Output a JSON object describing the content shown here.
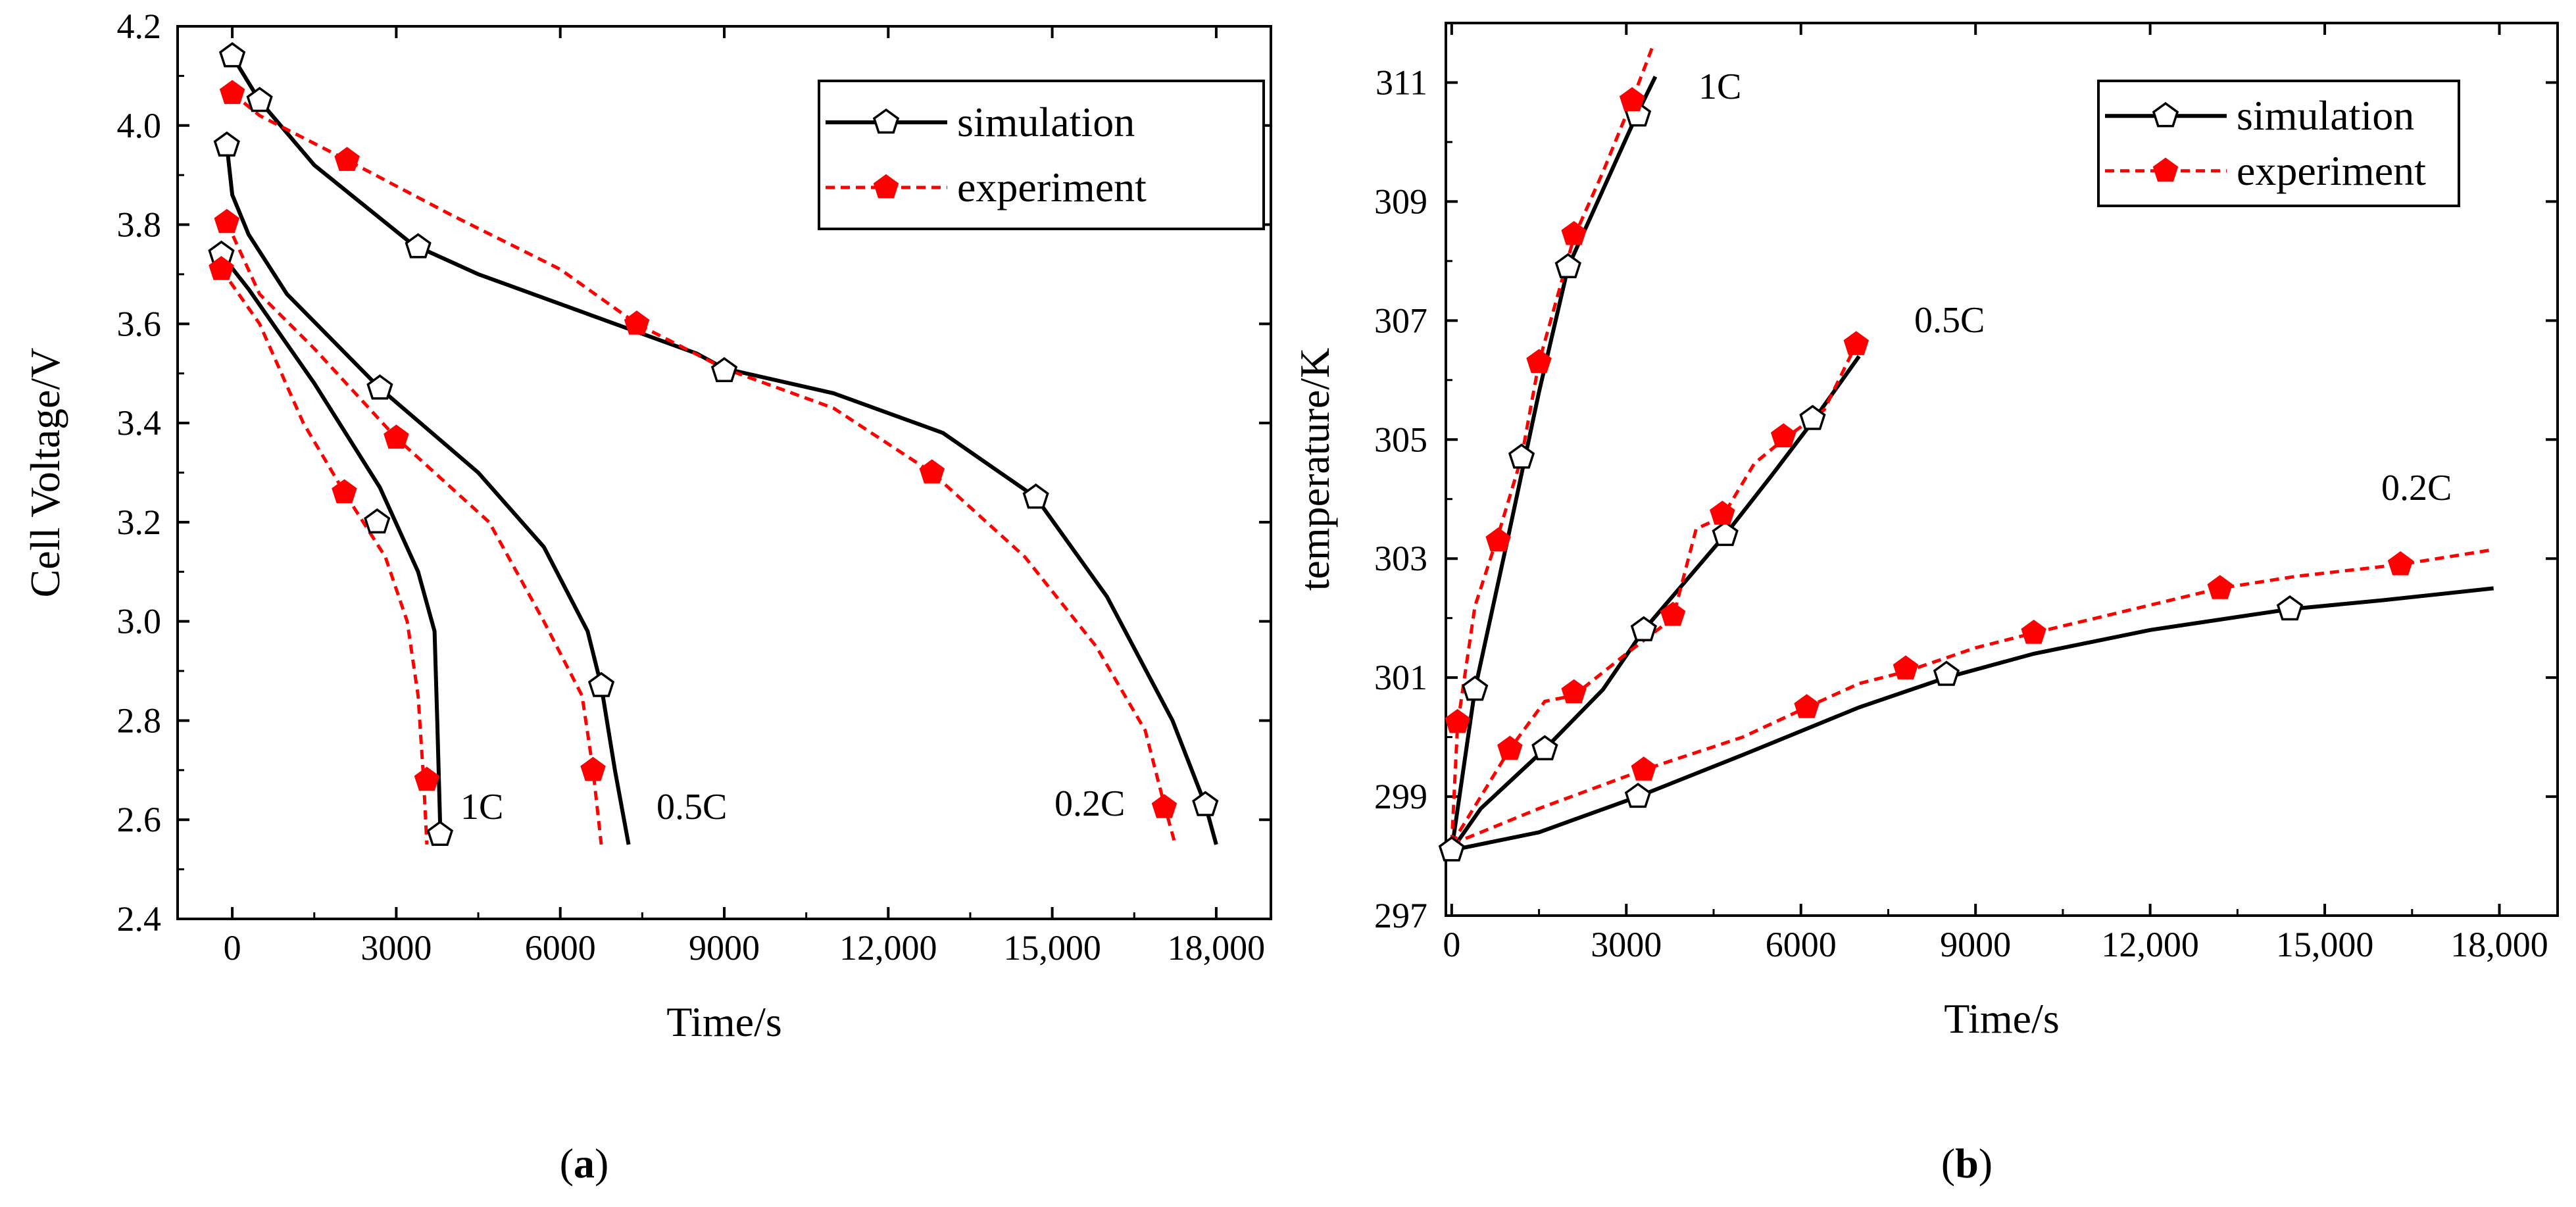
{
  "colors": {
    "simulation": "#000000",
    "experiment": "#ff0000"
  },
  "chart_data": [
    {
      "type": "line",
      "panel": "a",
      "caption": {
        "open": "(",
        "letter": "a",
        "close": ")"
      },
      "xlabel": "Time/s",
      "ylabel": "Cell Voltage/V",
      "xlim": [
        -1000,
        19000
      ],
      "ylim": [
        2.4,
        4.2
      ],
      "xticks": [
        0,
        3000,
        6000,
        9000,
        12000,
        15000,
        18000
      ],
      "xtick_labels": [
        "0",
        "3000",
        "6000",
        "9000",
        "12,000",
        "15,000",
        "18,000"
      ],
      "yticks": [
        2.4,
        2.6,
        2.8,
        3.0,
        3.2,
        3.4,
        3.6,
        3.8,
        4.0,
        4.2
      ],
      "ytick_labels": [
        "2.4",
        "2.6",
        "2.8",
        "3.0",
        "3.2",
        "3.4",
        "3.6",
        "3.8",
        "4.0",
        "4.2"
      ],
      "legend": {
        "position": "top-right",
        "entries": [
          "simulation",
          "experiment"
        ]
      },
      "annotations": [
        {
          "text": "1C",
          "x": 4200,
          "y": 2.6
        },
        {
          "text": "0.5C",
          "x": 7700,
          "y": 2.6
        },
        {
          "text": "0.2C",
          "x": 15100,
          "y": 2.61
        }
      ],
      "series": [
        {
          "name": "simulation",
          "label": "1C",
          "points": [
            [
              -200,
              3.74
            ],
            [
              300,
              3.67
            ],
            [
              1500,
              3.48
            ],
            [
              2700,
              3.27
            ],
            [
              3400,
              3.1
            ],
            [
              3700,
              2.98
            ],
            [
              3750,
              2.8
            ],
            [
              3800,
              2.6
            ],
            [
              3810,
              2.55
            ]
          ],
          "markers": [
            [
              -200,
              3.74
            ],
            [
              2650,
              3.2
            ],
            [
              3800,
              2.57
            ]
          ]
        },
        {
          "name": "simulation",
          "label": "0.5C",
          "points": [
            [
              -100,
              3.96
            ],
            [
              0,
              3.86
            ],
            [
              300,
              3.78
            ],
            [
              1000,
              3.66
            ],
            [
              2700,
              3.47
            ],
            [
              4500,
              3.3
            ],
            [
              5700,
              3.15
            ],
            [
              6500,
              2.98
            ],
            [
              6750,
              2.87
            ],
            [
              7000,
              2.7
            ],
            [
              7250,
              2.55
            ]
          ],
          "markers": [
            [
              -100,
              3.96
            ],
            [
              2700,
              3.47
            ],
            [
              6750,
              2.87
            ]
          ]
        },
        {
          "name": "simulation",
          "label": "0.2C",
          "points": [
            [
              0,
              4.14
            ],
            [
              500,
              4.05
            ],
            [
              1500,
              3.92
            ],
            [
              3300,
              3.76
            ],
            [
              4500,
              3.7
            ],
            [
              6500,
              3.62
            ],
            [
              8500,
              3.54
            ],
            [
              9000,
              3.51
            ],
            [
              11000,
              3.46
            ],
            [
              13000,
              3.38
            ],
            [
              14700,
              3.25
            ],
            [
              16000,
              3.05
            ],
            [
              17200,
              2.8
            ],
            [
              17800,
              2.63
            ],
            [
              18000,
              2.55
            ]
          ],
          "markers": [
            [
              0,
              4.14
            ],
            [
              500,
              4.05
            ],
            [
              3400,
              3.755
            ],
            [
              9000,
              3.505
            ],
            [
              14700,
              3.25
            ],
            [
              17800,
              2.63
            ]
          ]
        },
        {
          "name": "experiment",
          "label": "1C",
          "points": [
            [
              -200,
              3.71
            ],
            [
              500,
              3.6
            ],
            [
              1300,
              3.4
            ],
            [
              2050,
              3.26
            ],
            [
              2800,
              3.13
            ],
            [
              3200,
              3.0
            ],
            [
              3400,
              2.85
            ],
            [
              3500,
              2.68
            ],
            [
              3560,
              2.55
            ]
          ],
          "markers": [
            [
              -200,
              3.71
            ],
            [
              2050,
              3.26
            ],
            [
              3560,
              2.68
            ]
          ]
        },
        {
          "name": "experiment",
          "label": "0.5C",
          "points": [
            [
              -100,
              3.805
            ],
            [
              500,
              3.66
            ],
            [
              1500,
              3.55
            ],
            [
              3000,
              3.37
            ],
            [
              4700,
              3.2
            ],
            [
              5700,
              3.0
            ],
            [
              6400,
              2.85
            ],
            [
              6600,
              2.7
            ],
            [
              6750,
              2.55
            ]
          ],
          "markers": [
            [
              -100,
              3.805
            ],
            [
              3000,
              3.37
            ],
            [
              6600,
              2.7
            ]
          ]
        },
        {
          "name": "experiment",
          "label": "0.2C",
          "points": [
            [
              0,
              4.065
            ],
            [
              500,
              4.02
            ],
            [
              2100,
              3.93
            ],
            [
              4000,
              3.82
            ],
            [
              6000,
              3.71
            ],
            [
              7400,
              3.6
            ],
            [
              9000,
              3.51
            ],
            [
              11000,
              3.43
            ],
            [
              12800,
              3.3
            ],
            [
              14500,
              3.13
            ],
            [
              15800,
              2.95
            ],
            [
              16700,
              2.78
            ],
            [
              17050,
              2.63
            ],
            [
              17250,
              2.55
            ]
          ],
          "markers": [
            [
              0,
              4.065
            ],
            [
              2100,
              3.93
            ],
            [
              7400,
              3.6
            ],
            [
              12800,
              3.3
            ],
            [
              17050,
              2.625
            ]
          ]
        }
      ]
    },
    {
      "type": "line",
      "panel": "b",
      "caption": {
        "open": "(",
        "letter": "b",
        "close": ")"
      },
      "xlabel": "Time/s",
      "ylabel": "temperature/K",
      "xlim": [
        -100,
        19000
      ],
      "ylim": [
        297,
        312
      ],
      "xticks": [
        0,
        3000,
        6000,
        9000,
        12000,
        15000,
        18000
      ],
      "xtick_labels": [
        "0",
        "3000",
        "6000",
        "9000",
        "12,000",
        "15,000",
        "18,000"
      ],
      "yticks": [
        297,
        299,
        301,
        303,
        305,
        307,
        309,
        311
      ],
      "ytick_labels": [
        "297",
        "299",
        "301",
        "303",
        "305",
        "307",
        "309",
        "311"
      ],
      "legend": {
        "position": "top-right",
        "entries": [
          "simulation",
          "experiment"
        ]
      },
      "annotations": [
        {
          "text": "1C",
          "x": 4200,
          "y": 310.8
        },
        {
          "text": "0.5C",
          "x": 8100,
          "y": 306.6
        },
        {
          "text": "0.2C",
          "x": 16000,
          "y": 303.6
        }
      ],
      "series": [
        {
          "name": "simulation",
          "label": "1C",
          "points": [
            [
              0,
              298.1
            ],
            [
              400,
              300.8
            ],
            [
              1000,
              303.5
            ],
            [
              1500,
              305.8
            ],
            [
              2000,
              307.9
            ],
            [
              2600,
              309.2
            ],
            [
              3200,
              310.5
            ],
            [
              3500,
              311.1
            ]
          ],
          "markers": [
            [
              0,
              298.1
            ],
            [
              400,
              300.8
            ],
            [
              1200,
              304.7
            ],
            [
              2000,
              307.9
            ],
            [
              3200,
              310.45
            ]
          ]
        },
        {
          "name": "simulation",
          "label": "0.5C",
          "points": [
            [
              0,
              298.1
            ],
            [
              500,
              298.8
            ],
            [
              1600,
              299.8
            ],
            [
              2600,
              300.8
            ],
            [
              3300,
              301.8
            ],
            [
              4000,
              302.6
            ],
            [
              4700,
              303.4
            ],
            [
              5500,
              304.4
            ],
            [
              6200,
              305.3
            ],
            [
              7000,
              306.4
            ]
          ],
          "markers": [
            [
              1600,
              299.8
            ],
            [
              3300,
              301.8
            ],
            [
              4700,
              303.4
            ],
            [
              6200,
              305.35
            ]
          ]
        },
        {
          "name": "simulation",
          "label": "0.2C",
          "points": [
            [
              0,
              298.1
            ],
            [
              1500,
              298.4
            ],
            [
              3200,
              299.0
            ],
            [
              5000,
              299.7
            ],
            [
              7000,
              300.5
            ],
            [
              8500,
              301.0
            ],
            [
              10000,
              301.4
            ],
            [
              12000,
              301.8
            ],
            [
              14400,
              302.15
            ],
            [
              16000,
              302.3
            ],
            [
              17900,
              302.5
            ]
          ],
          "markers": [
            [
              3200,
              299.0
            ],
            [
              8500,
              301.05
            ],
            [
              14400,
              302.15
            ]
          ]
        },
        {
          "name": "experiment",
          "label": "1C",
          "points": [
            [
              0,
              298.2
            ],
            [
              100,
              300.2
            ],
            [
              400,
              302.2
            ],
            [
              800,
              303.4
            ],
            [
              1200,
              304.7
            ],
            [
              1500,
              306.3
            ],
            [
              2100,
              308.4
            ],
            [
              2600,
              309.5
            ],
            [
              3100,
              310.7
            ],
            [
              3450,
              311.6
            ]
          ],
          "markers": [
            [
              100,
              300.25
            ],
            [
              800,
              303.3
            ],
            [
              1500,
              306.3
            ],
            [
              2100,
              308.45
            ],
            [
              3100,
              310.7
            ]
          ]
        },
        {
          "name": "experiment",
          "label": "0.5C",
          "points": [
            [
              0,
              298.2
            ],
            [
              1000,
              299.8
            ],
            [
              1600,
              300.6
            ],
            [
              2100,
              300.7
            ],
            [
              3000,
              301.4
            ],
            [
              3800,
              302.0
            ],
            [
              4200,
              303.5
            ],
            [
              4650,
              303.7
            ],
            [
              5200,
              304.6
            ],
            [
              5700,
              305.0
            ],
            [
              6400,
              305.5
            ],
            [
              7000,
              306.7
            ]
          ],
          "markers": [
            [
              1000,
              299.8
            ],
            [
              2100,
              300.75
            ],
            [
              3800,
              302.05
            ],
            [
              4650,
              303.75
            ],
            [
              5700,
              305.05
            ],
            [
              6950,
              306.6
            ]
          ]
        },
        {
          "name": "experiment",
          "label": "0.2C",
          "points": [
            [
              0,
              298.2
            ],
            [
              1500,
              298.8
            ],
            [
              3300,
              299.45
            ],
            [
              5000,
              300.0
            ],
            [
              6100,
              300.5
            ],
            [
              7000,
              300.9
            ],
            [
              7800,
              301.1
            ],
            [
              9000,
              301.5
            ],
            [
              10000,
              301.75
            ],
            [
              11500,
              302.1
            ],
            [
              13200,
              302.5
            ],
            [
              14500,
              302.7
            ],
            [
              16300,
              302.9
            ],
            [
              17900,
              303.15
            ]
          ],
          "markers": [
            [
              3300,
              299.45
            ],
            [
              6100,
              300.5
            ],
            [
              7800,
              301.15
            ],
            [
              10000,
              301.75
            ],
            [
              13200,
              302.5
            ],
            [
              16300,
              302.9
            ]
          ]
        }
      ]
    }
  ]
}
